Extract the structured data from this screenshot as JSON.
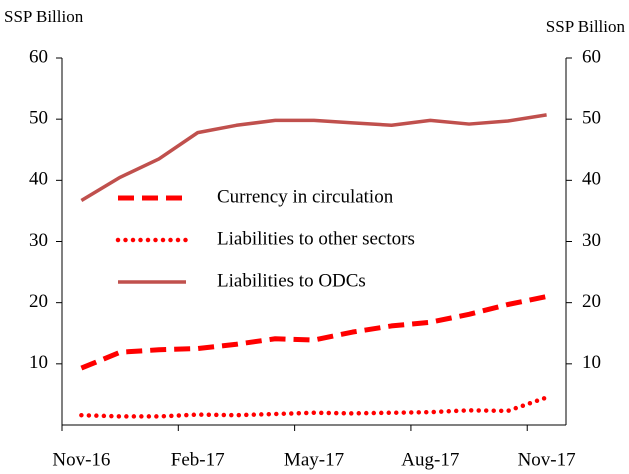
{
  "chart_data": {
    "type": "line",
    "y_label": "SSP Billion",
    "y2_label": "SSP Billion",
    "categories": [
      "Nov-16",
      null,
      null,
      "Feb-17",
      null,
      null,
      "May-17",
      null,
      null,
      "Aug-17",
      null,
      null,
      "Nov-17"
    ],
    "series": [
      {
        "name": "Currency in circulation",
        "color": "#ff0000",
        "style": "dashed",
        "values": [
          9.3,
          11.9,
          12.3,
          12.5,
          13.2,
          14.1,
          13.9,
          15.2,
          16.2,
          16.8,
          18.1,
          19.7,
          21.0
        ]
      },
      {
        "name": "Liabilities to other sectors",
        "color": "#ff0000",
        "style": "dotted",
        "values": [
          1.6,
          1.4,
          1.4,
          1.7,
          1.6,
          1.8,
          2.0,
          1.9,
          2.0,
          2.1,
          2.4,
          2.3,
          4.5
        ]
      },
      {
        "name": "Liabilities to ODCs",
        "color": "#c0504d",
        "style": "solid",
        "values": [
          36.7,
          40.5,
          43.5,
          47.8,
          49.0,
          49.8,
          49.8,
          49.4,
          49.0,
          49.8,
          49.2,
          49.7,
          50.7
        ]
      }
    ],
    "ylim": [
      0,
      60
    ],
    "yticks": [
      10,
      20,
      30,
      40,
      50,
      60
    ],
    "y2lim": [
      0,
      60
    ],
    "y2ticks": [
      10,
      20,
      30,
      40,
      50,
      60
    ]
  }
}
